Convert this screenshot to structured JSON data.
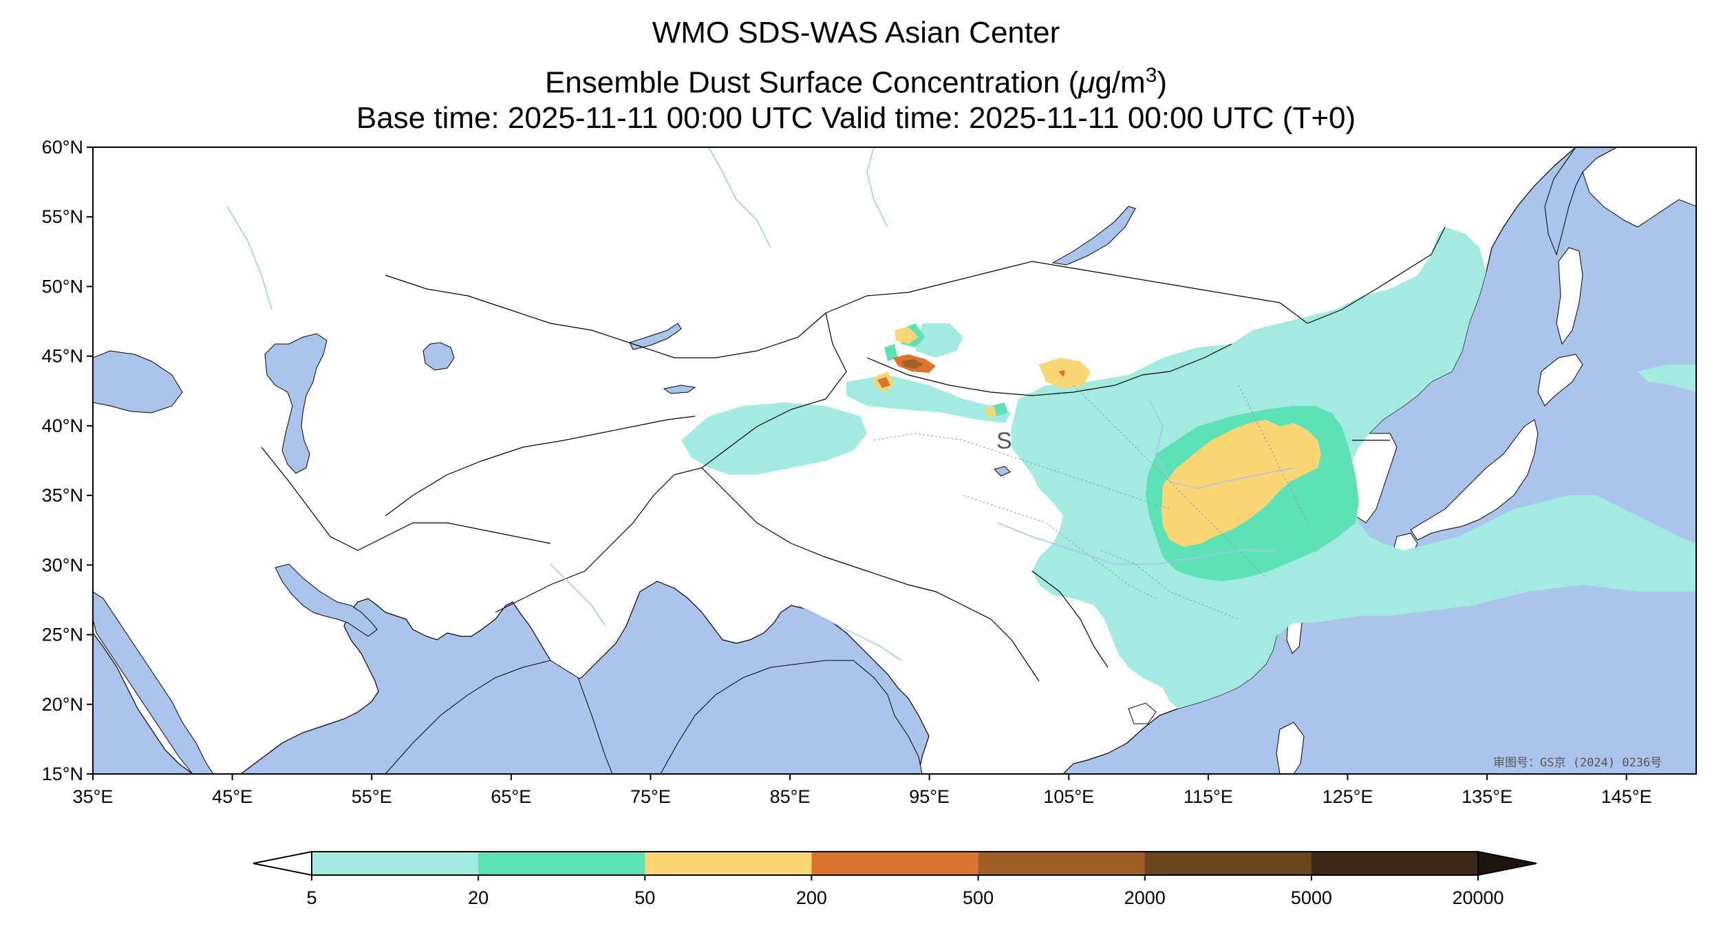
{
  "title": {
    "line1": "WMO SDS-WAS Asian Center",
    "line2_prefix": "Ensemble Dust Surface Concentration (",
    "line2_mu": "μ",
    "line2_unit": "g/m",
    "line2_exp": "3",
    "line2_suffix": ")",
    "line3": "Base time: 2025-11-11 00:00 UTC Valid time: 2025-11-11 00:00 UTC (T+0)"
  },
  "map": {
    "lon_range": [
      35,
      150
    ],
    "lat_range": [
      15,
      60
    ],
    "lat_ticks": [
      {
        "value": 60,
        "label": "60°N"
      },
      {
        "value": 55,
        "label": "55°N"
      },
      {
        "value": 50,
        "label": "50°N"
      },
      {
        "value": 45,
        "label": "45°N"
      },
      {
        "value": 40,
        "label": "40°N"
      },
      {
        "value": 35,
        "label": "35°N"
      },
      {
        "value": 30,
        "label": "30°N"
      },
      {
        "value": 25,
        "label": "25°N"
      },
      {
        "value": 20,
        "label": "20°N"
      },
      {
        "value": 15,
        "label": "15°N"
      }
    ],
    "lon_ticks": [
      {
        "value": 35,
        "label": "35°E"
      },
      {
        "value": 45,
        "label": "45°E"
      },
      {
        "value": 55,
        "label": "55°E"
      },
      {
        "value": 65,
        "label": "65°E"
      },
      {
        "value": 75,
        "label": "75°E"
      },
      {
        "value": 85,
        "label": "85°E"
      },
      {
        "value": 95,
        "label": "95°E"
      },
      {
        "value": 105,
        "label": "105°E"
      },
      {
        "value": 115,
        "label": "115°E"
      },
      {
        "value": 125,
        "label": "125°E"
      },
      {
        "value": 135,
        "label": "135°E"
      },
      {
        "value": 145,
        "label": "145°E"
      }
    ],
    "approval_stamp": "审图号：GS京 (2024) 0236号",
    "station_marker": "S",
    "colors": {
      "water": "#aac4ec",
      "land": "#ffffff",
      "border": "#000000",
      "river": "#a6c2ea"
    }
  },
  "colorbar": {
    "levels": [
      "5",
      "20",
      "50",
      "200",
      "500",
      "2000",
      "5000",
      "20000"
    ],
    "colors": [
      "#a3ebe0",
      "#5de1b6",
      "#fad674",
      "#db7430",
      "#a05f27",
      "#6b4420",
      "#3a2716"
    ],
    "under_color": "#ffffff",
    "over_color": "#1f140b"
  },
  "chart_data": {
    "type": "map",
    "title": "WMO SDS-WAS Asian Center — Ensemble Dust Surface Concentration (μg/m3)",
    "variable": "Dust surface concentration",
    "units": "μg/m3",
    "base_time": "2025-11-11 00:00 UTC",
    "valid_time": "2025-11-11 00:00 UTC",
    "forecast_hour": "T+0",
    "xlim": [
      35,
      150
    ],
    "ylim": [
      15,
      60
    ],
    "bins": [
      5,
      20,
      50,
      200,
      500,
      2000,
      5000,
      20000
    ],
    "regions": [
      {
        "level": "5-20",
        "lon": [
          72,
          150
        ],
        "lat": [
          20,
          54
        ],
        "note": "broad light-teal dust over N/E China, Mongolia, seas east of China and Japan"
      },
      {
        "level": "20-50",
        "lon": [
          110,
          126
        ],
        "lat": [
          29,
          40
        ],
        "note": "North China Plain and Yellow Sea"
      },
      {
        "level": "50-200",
        "lon": [
          112,
          122
        ],
        "lat": [
          32,
          40
        ],
        "note": "core over North China Plain; small cells over W Mongolia and Gobi"
      },
      {
        "level": "200-500",
        "lon": [
          91,
          95
        ],
        "lat": [
          42,
          45
        ],
        "note": "small cells near Altai / E Tianshan"
      },
      {
        "level": "500-2000",
        "lon": [
          92,
          95
        ],
        "lat": [
          44,
          45
        ],
        "note": "local hotspot W Mongolia"
      }
    ]
  }
}
